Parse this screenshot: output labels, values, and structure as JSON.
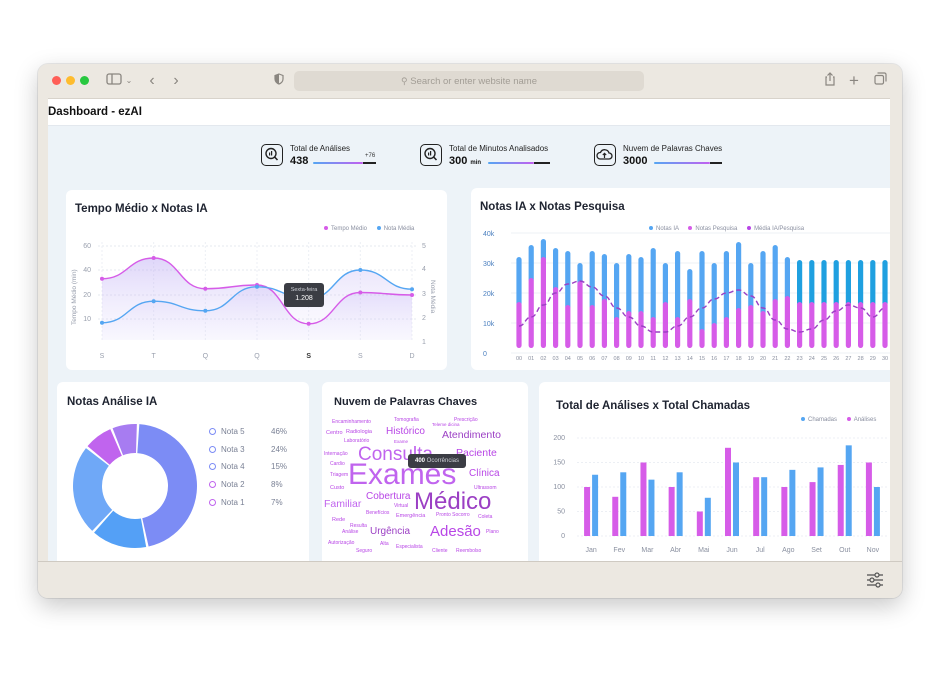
{
  "browser": {
    "url_placeholder": "Search or enter website name",
    "traffic_colors": [
      "#ff5f57",
      "#febc2e",
      "#28c840"
    ]
  },
  "page": {
    "title": "Dashboard - ezAI"
  },
  "stats": [
    {
      "label": "Total de Análises",
      "value": "438",
      "unit": "",
      "delta": "+76",
      "progress": 0.8,
      "icon": "search-report-icon"
    },
    {
      "label": "Total de Minutos Analisados",
      "value": "300",
      "unit": "min",
      "delta": "",
      "progress": 0.75,
      "icon": "search-report-icon"
    },
    {
      "label": "Nuvem de Palavras Chaves",
      "value": "3000",
      "unit": "",
      "delta": "",
      "progress": 0.9,
      "icon": "cloud-upload-icon"
    }
  ],
  "colors": {
    "blue": "#55a6f2",
    "pink": "#d65ce8",
    "purple": "#b846e6",
    "accent_purple": "#7c6cf2"
  },
  "tempo_chart": {
    "title": "Tempo Médio x Notas IA",
    "legend": [
      "Tempo Médio",
      "Nota Média"
    ],
    "ylabel_left": "Tempo Médio (min)",
    "ylabel_right": "Nota Média",
    "left_ticks": [
      "60",
      "40",
      "20",
      "10"
    ],
    "right_ticks": [
      "5",
      "4",
      "3",
      "2",
      "1"
    ],
    "x_labels": [
      "S",
      "T",
      "Q",
      "Q",
      "S",
      "S",
      "D"
    ],
    "tempo_medio": [
      33,
      50,
      25,
      28,
      8,
      22,
      20
    ],
    "nota_media": [
      1.8,
      2.7,
      2.3,
      3.3,
      2.8,
      4.0,
      3.2
    ],
    "tooltip": {
      "title": "Sexta-feira",
      "value": "1.208"
    }
  },
  "notas_chart": {
    "title": "Notas IA x Notas Pesquisa",
    "legend": [
      "Notas IA",
      "Notas Pesquisa",
      "Média IA/Pesquisa"
    ],
    "y_ticks": [
      "40k",
      "30k",
      "20k",
      "10k",
      "0"
    ],
    "x_labels": [
      "00",
      "01",
      "02",
      "03",
      "04",
      "05",
      "06",
      "07",
      "08",
      "09",
      "10",
      "11",
      "12",
      "13",
      "14",
      "15",
      "16",
      "17",
      "18",
      "19",
      "20",
      "21",
      "22",
      "23",
      "24",
      "25",
      "26",
      "27",
      "28",
      "29",
      "30"
    ],
    "notas_ia": [
      32,
      36,
      38,
      35,
      34,
      30,
      34,
      33,
      30,
      33,
      32,
      35,
      30,
      34,
      28,
      34,
      30,
      34,
      37,
      30,
      34,
      36,
      32,
      31,
      31,
      31,
      31,
      31,
      31,
      31,
      31
    ],
    "notas_pesquisa": [
      17,
      25,
      32,
      22,
      16,
      24,
      16,
      18,
      12,
      14,
      14,
      12,
      17,
      12,
      18,
      8,
      10,
      12,
      15,
      16,
      14,
      18,
      19,
      17,
      17,
      17,
      17,
      17,
      17,
      17,
      17
    ],
    "media": [
      9,
      12,
      16,
      20,
      23,
      24,
      22,
      19,
      15,
      12,
      9,
      7,
      7,
      9,
      12,
      15,
      18,
      20,
      21,
      19,
      15,
      11,
      8,
      7,
      8,
      11,
      14,
      16,
      15,
      12,
      15
    ]
  },
  "donut_chart": {
    "title": "Notas Análise IA",
    "items": [
      {
        "label": "Nota 5",
        "pct": "46%",
        "value": 46,
        "color": "#7c8cf5"
      },
      {
        "label": "Nota 3",
        "pct": "24%",
        "value": 24,
        "color": "#6fa8f7"
      },
      {
        "label": "Nota 4",
        "pct": "15%",
        "value": 15,
        "color": "#54a0f6"
      },
      {
        "label": "Nota 2",
        "pct": "8%",
        "value": 8,
        "color": "#c064ee"
      },
      {
        "label": "Nota 1",
        "pct": "7%",
        "value": 7,
        "color": "#a77cf1"
      }
    ]
  },
  "word_cloud": {
    "title": "Nuvem de Palavras Chaves",
    "tooltip": {
      "value": "400",
      "label": "Ocorrências"
    },
    "words": [
      "Encaminhamento",
      "Tomografia",
      "Prescrição",
      "Teleme dicina",
      "Centro",
      "Radiologia",
      "Histórico",
      "Atendimento",
      "Laboratório",
      "Exame",
      "Internação",
      "Consulta",
      "Paciente",
      "Cardio",
      "Exames",
      "Clínica",
      "Triagem",
      "Custo",
      "Ultrassom",
      "Cobertura",
      "Médico",
      "Familiar",
      "Virtual",
      "Rede",
      "Benefícios",
      "Emergência",
      "Pronto Socorro",
      "Coleta",
      "Resulta",
      "Análise",
      "Urgência",
      "Adesão",
      "Plano",
      "Autorização",
      "Alta",
      "Especialista",
      "Cliente",
      "Reembolso",
      "Seguro"
    ]
  },
  "total_chart": {
    "title": "Total de Análises x Total Chamadas",
    "legend": [
      "Chamadas",
      "Análises"
    ],
    "y_ticks": [
      "200",
      "150",
      "100",
      "50",
      "0"
    ],
    "months": [
      "Jan",
      "Fev",
      "Mar",
      "Abr",
      "Mai",
      "Jun",
      "Jul",
      "Ago",
      "Set",
      "Out",
      "Nov"
    ],
    "analises": [
      100,
      80,
      150,
      100,
      50,
      180,
      120,
      100,
      110,
      145,
      150
    ],
    "chamadas": [
      125,
      130,
      115,
      130,
      78,
      150,
      120,
      135,
      140,
      185,
      100
    ],
    "ylim": [
      0,
      200
    ]
  }
}
